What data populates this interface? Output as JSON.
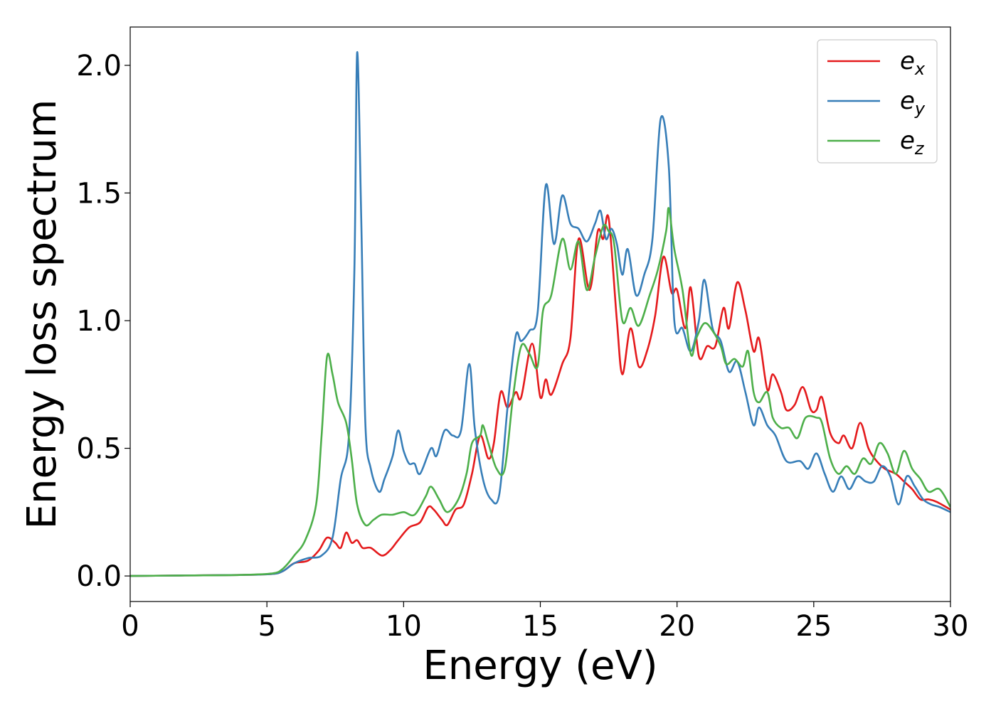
{
  "chart_data": {
    "type": "line",
    "xlabel": "Energy (eV)",
    "ylabel": "Energy loss spectrum",
    "xlim": [
      0,
      30
    ],
    "ylim": [
      -0.1,
      2.15
    ],
    "x_ticks": [
      0,
      5,
      10,
      15,
      20,
      25,
      30
    ],
    "x_tick_labels": [
      "0",
      "5",
      "10",
      "15",
      "20",
      "25",
      "30"
    ],
    "y_ticks": [
      0.0,
      0.5,
      1.0,
      1.5,
      2.0
    ],
    "y_tick_labels": [
      "0.0",
      "0.5",
      "1.0",
      "1.5",
      "2.0"
    ],
    "grid": false,
    "legend_position": "top-right",
    "series": [
      {
        "name": "e_x",
        "label_main": "e",
        "label_sub": "x",
        "color": "#e41a1c",
        "points": [
          [
            0,
            0
          ],
          [
            2,
            0.002
          ],
          [
            4,
            0.004
          ],
          [
            5.2,
            0.008
          ],
          [
            5.6,
            0.02
          ],
          [
            6,
            0.05
          ],
          [
            6.5,
            0.06
          ],
          [
            6.9,
            0.1
          ],
          [
            7.2,
            0.15
          ],
          [
            7.5,
            0.13
          ],
          [
            7.7,
            0.11
          ],
          [
            7.9,
            0.17
          ],
          [
            8.1,
            0.13
          ],
          [
            8.3,
            0.14
          ],
          [
            8.5,
            0.11
          ],
          [
            8.8,
            0.11
          ],
          [
            9.2,
            0.08
          ],
          [
            9.5,
            0.1
          ],
          [
            9.8,
            0.14
          ],
          [
            10.2,
            0.19
          ],
          [
            10.6,
            0.21
          ],
          [
            10.9,
            0.27
          ],
          [
            11.1,
            0.26
          ],
          [
            11.4,
            0.22
          ],
          [
            11.6,
            0.2
          ],
          [
            11.9,
            0.26
          ],
          [
            12.2,
            0.28
          ],
          [
            12.5,
            0.4
          ],
          [
            12.8,
            0.55
          ],
          [
            13.1,
            0.46
          ],
          [
            13.3,
            0.52
          ],
          [
            13.55,
            0.72
          ],
          [
            13.8,
            0.66
          ],
          [
            14.1,
            0.72
          ],
          [
            14.3,
            0.7
          ],
          [
            14.7,
            0.91
          ],
          [
            15,
            0.7
          ],
          [
            15.2,
            0.77
          ],
          [
            15.4,
            0.71
          ],
          [
            15.8,
            0.83
          ],
          [
            16.1,
            0.93
          ],
          [
            16.4,
            1.32
          ],
          [
            16.8,
            1.12
          ],
          [
            17.1,
            1.35
          ],
          [
            17.3,
            1.32
          ],
          [
            17.5,
            1.4
          ],
          [
            17.8,
            1.0
          ],
          [
            18,
            0.79
          ],
          [
            18.3,
            0.97
          ],
          [
            18.6,
            0.82
          ],
          [
            18.9,
            0.88
          ],
          [
            19.2,
            1.02
          ],
          [
            19.5,
            1.25
          ],
          [
            19.8,
            1.11
          ],
          [
            20,
            1.12
          ],
          [
            20.3,
            0.97
          ],
          [
            20.5,
            1.13
          ],
          [
            20.8,
            0.86
          ],
          [
            21.1,
            0.9
          ],
          [
            21.4,
            0.9
          ],
          [
            21.7,
            1.05
          ],
          [
            21.9,
            0.97
          ],
          [
            22.2,
            1.15
          ],
          [
            22.5,
            1.04
          ],
          [
            22.8,
            0.88
          ],
          [
            23,
            0.93
          ],
          [
            23.3,
            0.73
          ],
          [
            23.5,
            0.79
          ],
          [
            23.8,
            0.72
          ],
          [
            24,
            0.65
          ],
          [
            24.3,
            0.67
          ],
          [
            24.6,
            0.74
          ],
          [
            24.9,
            0.65
          ],
          [
            25.1,
            0.65
          ],
          [
            25.3,
            0.7
          ],
          [
            25.6,
            0.56
          ],
          [
            25.9,
            0.52
          ],
          [
            26.1,
            0.55
          ],
          [
            26.4,
            0.5
          ],
          [
            26.7,
            0.6
          ],
          [
            27,
            0.5
          ],
          [
            27.3,
            0.45
          ],
          [
            27.6,
            0.42
          ],
          [
            28,
            0.4
          ],
          [
            28.3,
            0.37
          ],
          [
            28.6,
            0.34
          ],
          [
            28.9,
            0.3
          ],
          [
            29.2,
            0.3
          ],
          [
            29.5,
            0.29
          ],
          [
            30,
            0.26
          ]
        ]
      },
      {
        "name": "e_y",
        "label_main": "e",
        "label_sub": "y",
        "color": "#377eb8",
        "points": [
          [
            0,
            0
          ],
          [
            2,
            0.002
          ],
          [
            4,
            0.004
          ],
          [
            5.2,
            0.008
          ],
          [
            5.6,
            0.02
          ],
          [
            6,
            0.05
          ],
          [
            6.5,
            0.07
          ],
          [
            7,
            0.08
          ],
          [
            7.4,
            0.15
          ],
          [
            7.7,
            0.38
          ],
          [
            8,
            0.55
          ],
          [
            8.2,
            1.2
          ],
          [
            8.3,
            2.05
          ],
          [
            8.45,
            1.4
          ],
          [
            8.6,
            0.6
          ],
          [
            8.8,
            0.42
          ],
          [
            9.1,
            0.33
          ],
          [
            9.3,
            0.38
          ],
          [
            9.6,
            0.47
          ],
          [
            9.8,
            0.57
          ],
          [
            10,
            0.49
          ],
          [
            10.2,
            0.44
          ],
          [
            10.4,
            0.44
          ],
          [
            10.6,
            0.4
          ],
          [
            11,
            0.5
          ],
          [
            11.2,
            0.47
          ],
          [
            11.5,
            0.57
          ],
          [
            11.8,
            0.55
          ],
          [
            12.1,
            0.57
          ],
          [
            12.4,
            0.83
          ],
          [
            12.6,
            0.58
          ],
          [
            12.9,
            0.38
          ],
          [
            13.2,
            0.3
          ],
          [
            13.5,
            0.32
          ],
          [
            13.8,
            0.66
          ],
          [
            14.1,
            0.94
          ],
          [
            14.3,
            0.92
          ],
          [
            14.6,
            0.96
          ],
          [
            14.9,
            1.03
          ],
          [
            15.2,
            1.53
          ],
          [
            15.5,
            1.3
          ],
          [
            15.8,
            1.49
          ],
          [
            16.1,
            1.38
          ],
          [
            16.4,
            1.36
          ],
          [
            16.7,
            1.31
          ],
          [
            17,
            1.38
          ],
          [
            17.2,
            1.43
          ],
          [
            17.4,
            1.32
          ],
          [
            17.6,
            1.36
          ],
          [
            17.8,
            1.3
          ],
          [
            18,
            1.18
          ],
          [
            18.2,
            1.28
          ],
          [
            18.5,
            1.1
          ],
          [
            18.8,
            1.18
          ],
          [
            19.1,
            1.32
          ],
          [
            19.4,
            1.79
          ],
          [
            19.7,
            1.6
          ],
          [
            19.9,
            1.0
          ],
          [
            20.2,
            0.97
          ],
          [
            20.5,
            0.88
          ],
          [
            20.8,
            1.0
          ],
          [
            21,
            1.16
          ],
          [
            21.3,
            0.97
          ],
          [
            21.6,
            0.92
          ],
          [
            21.9,
            0.8
          ],
          [
            22.2,
            0.84
          ],
          [
            22.5,
            0.72
          ],
          [
            22.8,
            0.59
          ],
          [
            23,
            0.66
          ],
          [
            23.3,
            0.59
          ],
          [
            23.6,
            0.55
          ],
          [
            24,
            0.45
          ],
          [
            24.5,
            0.45
          ],
          [
            24.8,
            0.42
          ],
          [
            25.1,
            0.48
          ],
          [
            25.4,
            0.4
          ],
          [
            25.7,
            0.33
          ],
          [
            26,
            0.39
          ],
          [
            26.3,
            0.34
          ],
          [
            26.6,
            0.39
          ],
          [
            26.9,
            0.37
          ],
          [
            27.2,
            0.37
          ],
          [
            27.5,
            0.43
          ],
          [
            27.8,
            0.39
          ],
          [
            28.1,
            0.28
          ],
          [
            28.4,
            0.39
          ],
          [
            28.7,
            0.35
          ],
          [
            29,
            0.3
          ],
          [
            29.3,
            0.28
          ],
          [
            29.6,
            0.27
          ],
          [
            30,
            0.25
          ]
        ]
      },
      {
        "name": "e_z",
        "label_main": "e",
        "label_sub": "z",
        "color": "#4daf4a",
        "points": [
          [
            0,
            0
          ],
          [
            2,
            0.002
          ],
          [
            4,
            0.004
          ],
          [
            5.2,
            0.01
          ],
          [
            5.6,
            0.03
          ],
          [
            6,
            0.08
          ],
          [
            6.4,
            0.14
          ],
          [
            6.8,
            0.28
          ],
          [
            7,
            0.55
          ],
          [
            7.2,
            0.86
          ],
          [
            7.4,
            0.79
          ],
          [
            7.6,
            0.68
          ],
          [
            7.9,
            0.6
          ],
          [
            8.1,
            0.46
          ],
          [
            8.3,
            0.28
          ],
          [
            8.6,
            0.2
          ],
          [
            8.9,
            0.22
          ],
          [
            9.2,
            0.24
          ],
          [
            9.6,
            0.24
          ],
          [
            10,
            0.25
          ],
          [
            10.4,
            0.24
          ],
          [
            10.8,
            0.31
          ],
          [
            11,
            0.35
          ],
          [
            11.3,
            0.3
          ],
          [
            11.6,
            0.25
          ],
          [
            12,
            0.3
          ],
          [
            12.3,
            0.4
          ],
          [
            12.5,
            0.52
          ],
          [
            12.8,
            0.55
          ],
          [
            12.9,
            0.59
          ],
          [
            13.1,
            0.52
          ],
          [
            13.4,
            0.42
          ],
          [
            13.7,
            0.42
          ],
          [
            14,
            0.7
          ],
          [
            14.3,
            0.9
          ],
          [
            14.6,
            0.87
          ],
          [
            14.9,
            0.82
          ],
          [
            15.1,
            1.04
          ],
          [
            15.4,
            1.1
          ],
          [
            15.8,
            1.32
          ],
          [
            16.1,
            1.2
          ],
          [
            16.4,
            1.31
          ],
          [
            16.7,
            1.12
          ],
          [
            17,
            1.25
          ],
          [
            17.3,
            1.37
          ],
          [
            17.5,
            1.35
          ],
          [
            17.7,
            1.3
          ],
          [
            18,
            1.0
          ],
          [
            18.3,
            1.05
          ],
          [
            18.6,
            0.98
          ],
          [
            19,
            1.1
          ],
          [
            19.3,
            1.2
          ],
          [
            19.6,
            1.35
          ],
          [
            19.7,
            1.44
          ],
          [
            19.9,
            1.28
          ],
          [
            20.2,
            1.12
          ],
          [
            20.5,
            0.87
          ],
          [
            20.7,
            0.93
          ],
          [
            21,
            0.99
          ],
          [
            21.3,
            0.96
          ],
          [
            21.6,
            0.9
          ],
          [
            21.8,
            0.83
          ],
          [
            22.1,
            0.85
          ],
          [
            22.4,
            0.82
          ],
          [
            22.6,
            0.88
          ],
          [
            22.8,
            0.72
          ],
          [
            23,
            0.68
          ],
          [
            23.3,
            0.72
          ],
          [
            23.5,
            0.62
          ],
          [
            23.8,
            0.58
          ],
          [
            24.1,
            0.58
          ],
          [
            24.4,
            0.54
          ],
          [
            24.7,
            0.62
          ],
          [
            25.1,
            0.62
          ],
          [
            25.3,
            0.6
          ],
          [
            25.6,
            0.46
          ],
          [
            25.9,
            0.4
          ],
          [
            26.2,
            0.43
          ],
          [
            26.5,
            0.4
          ],
          [
            26.8,
            0.46
          ],
          [
            27.1,
            0.44
          ],
          [
            27.4,
            0.52
          ],
          [
            27.7,
            0.48
          ],
          [
            28,
            0.4
          ],
          [
            28.3,
            0.49
          ],
          [
            28.6,
            0.42
          ],
          [
            28.9,
            0.38
          ],
          [
            29.2,
            0.33
          ],
          [
            29.6,
            0.34
          ],
          [
            30,
            0.27
          ]
        ]
      }
    ]
  }
}
